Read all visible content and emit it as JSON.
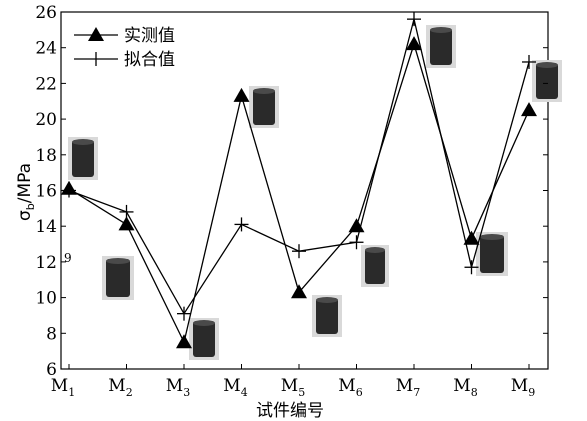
{
  "chart_data": {
    "type": "line",
    "categories": [
      "M1",
      "M2",
      "M3",
      "M4",
      "M5",
      "M6",
      "M7",
      "M8",
      "M9"
    ],
    "category_main": "M",
    "category_subs": [
      "1",
      "2",
      "3",
      "4",
      "5",
      "6",
      "7",
      "8",
      "9"
    ],
    "xlabel": "试件编号",
    "ylabel_main": "σ",
    "ylabel_sub": "b",
    "ylabel_unit": "/MPa",
    "ylim": [
      6,
      26
    ],
    "yticks": [
      6,
      8,
      10,
      12,
      14,
      16,
      18,
      20,
      22,
      24,
      26
    ],
    "series": [
      {
        "name": "实测值",
        "marker": "triangle",
        "values": [
          16.1,
          14.1,
          7.5,
          21.3,
          10.3,
          14.0,
          24.2,
          13.3,
          20.5
        ]
      },
      {
        "name": "拟合值",
        "marker": "plus",
        "values": [
          16.0,
          14.8,
          9.1,
          14.1,
          12.6,
          13.1,
          25.6,
          11.7,
          23.2
        ]
      }
    ],
    "legend_position": "top-left",
    "stray_label": "9",
    "sample_photos": [
      "specimen-photo-m1",
      "specimen-photo-m2",
      "specimen-photo-m3",
      "specimen-photo-m4",
      "specimen-photo-m5",
      "specimen-photo-m6",
      "specimen-photo-m7",
      "specimen-photo-m8",
      "specimen-photo-m9"
    ]
  }
}
